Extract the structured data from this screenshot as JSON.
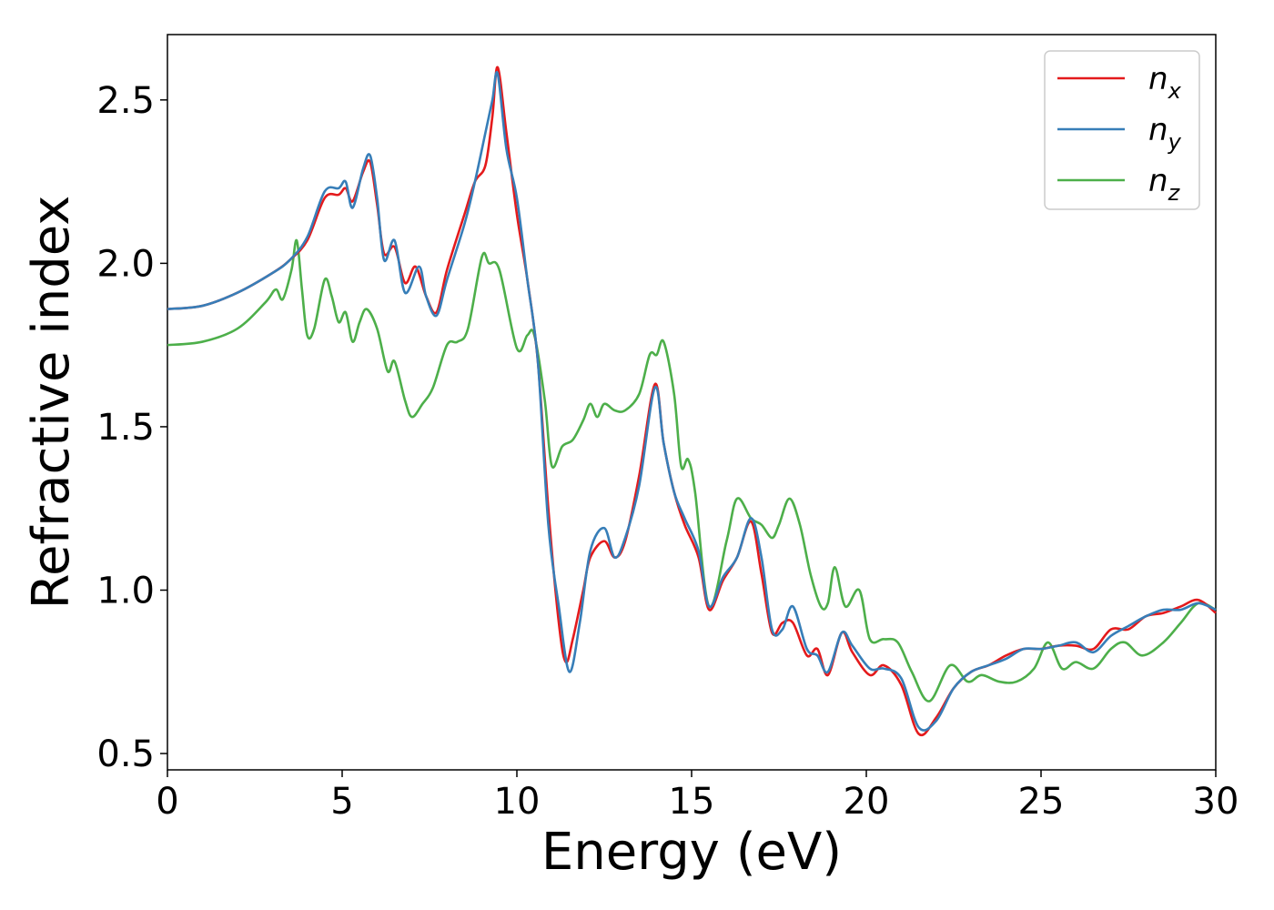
{
  "chart_data": {
    "type": "line",
    "xlabel": "Energy (eV)",
    "ylabel": "Refractive index",
    "xlim": [
      0,
      30
    ],
    "ylim": [
      0.45,
      2.7
    ],
    "xticks": [
      0,
      5,
      10,
      15,
      20,
      25,
      30
    ],
    "xtick_labels": [
      "0",
      "5",
      "10",
      "15",
      "20",
      "25",
      "30"
    ],
    "yticks": [
      0.5,
      1.0,
      1.5,
      2.0,
      2.5
    ],
    "ytick_labels": [
      "0.5",
      "1.0",
      "1.5",
      "2.0",
      "2.5"
    ],
    "grid": false,
    "legend_position": "top-right",
    "series": [
      {
        "name": "n",
        "subscript": "x",
        "color": "#e41a1c",
        "points": [
          [
            0,
            1.86
          ],
          [
            1,
            1.87
          ],
          [
            2,
            1.91
          ],
          [
            3,
            1.97
          ],
          [
            3.5,
            2.01
          ],
          [
            4,
            2.07
          ],
          [
            4.5,
            2.2
          ],
          [
            4.9,
            2.21
          ],
          [
            5.1,
            2.23
          ],
          [
            5.3,
            2.19
          ],
          [
            5.6,
            2.28
          ],
          [
            5.8,
            2.31
          ],
          [
            6.0,
            2.18
          ],
          [
            6.2,
            2.03
          ],
          [
            6.5,
            2.05
          ],
          [
            6.8,
            1.94
          ],
          [
            7.1,
            1.99
          ],
          [
            7.4,
            1.9
          ],
          [
            7.7,
            1.85
          ],
          [
            8.0,
            1.98
          ],
          [
            8.5,
            2.15
          ],
          [
            8.8,
            2.25
          ],
          [
            9.1,
            2.3
          ],
          [
            9.3,
            2.45
          ],
          [
            9.45,
            2.6
          ],
          [
            9.7,
            2.4
          ],
          [
            10.0,
            2.15
          ],
          [
            10.3,
            1.95
          ],
          [
            10.6,
            1.7
          ],
          [
            10.9,
            1.25
          ],
          [
            11.2,
            0.9
          ],
          [
            11.4,
            0.78
          ],
          [
            11.6,
            0.85
          ],
          [
            11.9,
            1.0
          ],
          [
            12.1,
            1.1
          ],
          [
            12.5,
            1.15
          ],
          [
            12.8,
            1.1
          ],
          [
            13.1,
            1.15
          ],
          [
            13.5,
            1.35
          ],
          [
            13.95,
            1.63
          ],
          [
            14.2,
            1.45
          ],
          [
            14.5,
            1.3
          ],
          [
            14.8,
            1.2
          ],
          [
            15.2,
            1.1
          ],
          [
            15.5,
            0.94
          ],
          [
            15.9,
            1.03
          ],
          [
            16.3,
            1.1
          ],
          [
            16.7,
            1.21
          ],
          [
            17.0,
            1.05
          ],
          [
            17.3,
            0.87
          ],
          [
            17.6,
            0.9
          ],
          [
            17.9,
            0.9
          ],
          [
            18.3,
            0.8
          ],
          [
            18.6,
            0.82
          ],
          [
            18.9,
            0.74
          ],
          [
            19.3,
            0.87
          ],
          [
            19.6,
            0.81
          ],
          [
            20.1,
            0.74
          ],
          [
            20.5,
            0.77
          ],
          [
            21.0,
            0.71
          ],
          [
            21.5,
            0.56
          ],
          [
            22.0,
            0.61
          ],
          [
            22.5,
            0.7
          ],
          [
            23.0,
            0.75
          ],
          [
            23.5,
            0.77
          ],
          [
            24.0,
            0.8
          ],
          [
            24.5,
            0.82
          ],
          [
            25.0,
            0.82
          ],
          [
            25.5,
            0.83
          ],
          [
            26.0,
            0.83
          ],
          [
            26.5,
            0.82
          ],
          [
            27.0,
            0.88
          ],
          [
            27.5,
            0.88
          ],
          [
            28.0,
            0.92
          ],
          [
            28.5,
            0.93
          ],
          [
            29.0,
            0.95
          ],
          [
            29.5,
            0.97
          ],
          [
            30.0,
            0.93
          ]
        ]
      },
      {
        "name": "n",
        "subscript": "y",
        "color": "#377eb8",
        "points": [
          [
            0,
            1.86
          ],
          [
            1,
            1.87
          ],
          [
            2,
            1.91
          ],
          [
            3,
            1.97
          ],
          [
            3.5,
            2.01
          ],
          [
            4,
            2.08
          ],
          [
            4.5,
            2.22
          ],
          [
            4.9,
            2.23
          ],
          [
            5.1,
            2.25
          ],
          [
            5.3,
            2.17
          ],
          [
            5.6,
            2.29
          ],
          [
            5.8,
            2.33
          ],
          [
            6.0,
            2.2
          ],
          [
            6.2,
            2.01
          ],
          [
            6.5,
            2.07
          ],
          [
            6.8,
            1.91
          ],
          [
            7.2,
            1.99
          ],
          [
            7.4,
            1.9
          ],
          [
            7.7,
            1.84
          ],
          [
            8.0,
            1.95
          ],
          [
            8.5,
            2.12
          ],
          [
            8.8,
            2.25
          ],
          [
            9.1,
            2.4
          ],
          [
            9.3,
            2.5
          ],
          [
            9.45,
            2.58
          ],
          [
            9.7,
            2.35
          ],
          [
            10.0,
            2.2
          ],
          [
            10.3,
            1.95
          ],
          [
            10.6,
            1.7
          ],
          [
            10.9,
            1.2
          ],
          [
            11.2,
            0.95
          ],
          [
            11.5,
            0.75
          ],
          [
            11.8,
            0.9
          ],
          [
            12.1,
            1.12
          ],
          [
            12.5,
            1.19
          ],
          [
            12.8,
            1.1
          ],
          [
            13.1,
            1.16
          ],
          [
            13.5,
            1.32
          ],
          [
            13.95,
            1.62
          ],
          [
            14.2,
            1.45
          ],
          [
            14.5,
            1.3
          ],
          [
            14.8,
            1.22
          ],
          [
            15.2,
            1.12
          ],
          [
            15.5,
            0.95
          ],
          [
            15.9,
            1.04
          ],
          [
            16.3,
            1.1
          ],
          [
            16.7,
            1.22
          ],
          [
            17.0,
            1.1
          ],
          [
            17.3,
            0.88
          ],
          [
            17.6,
            0.88
          ],
          [
            17.9,
            0.95
          ],
          [
            18.3,
            0.82
          ],
          [
            18.6,
            0.8
          ],
          [
            18.9,
            0.75
          ],
          [
            19.3,
            0.87
          ],
          [
            19.6,
            0.83
          ],
          [
            20.1,
            0.76
          ],
          [
            20.5,
            0.76
          ],
          [
            21.0,
            0.73
          ],
          [
            21.5,
            0.58
          ],
          [
            22.0,
            0.6
          ],
          [
            22.5,
            0.7
          ],
          [
            23.0,
            0.75
          ],
          [
            23.5,
            0.77
          ],
          [
            24.0,
            0.79
          ],
          [
            24.5,
            0.82
          ],
          [
            25.0,
            0.82
          ],
          [
            25.5,
            0.83
          ],
          [
            26.0,
            0.84
          ],
          [
            26.5,
            0.81
          ],
          [
            27.0,
            0.86
          ],
          [
            27.5,
            0.89
          ],
          [
            28.0,
            0.92
          ],
          [
            28.5,
            0.94
          ],
          [
            29.0,
            0.94
          ],
          [
            29.5,
            0.96
          ],
          [
            30.0,
            0.94
          ]
        ]
      },
      {
        "name": "n",
        "subscript": "z",
        "color": "#4daf4a",
        "points": [
          [
            0,
            1.75
          ],
          [
            1,
            1.76
          ],
          [
            2,
            1.8
          ],
          [
            2.8,
            1.88
          ],
          [
            3.1,
            1.92
          ],
          [
            3.3,
            1.89
          ],
          [
            3.55,
            1.98
          ],
          [
            3.7,
            2.07
          ],
          [
            3.85,
            1.92
          ],
          [
            4.0,
            1.78
          ],
          [
            4.2,
            1.8
          ],
          [
            4.5,
            1.95
          ],
          [
            4.7,
            1.9
          ],
          [
            4.9,
            1.82
          ],
          [
            5.1,
            1.85
          ],
          [
            5.3,
            1.76
          ],
          [
            5.5,
            1.82
          ],
          [
            5.7,
            1.86
          ],
          [
            6.0,
            1.8
          ],
          [
            6.3,
            1.67
          ],
          [
            6.5,
            1.7
          ],
          [
            6.8,
            1.58
          ],
          [
            7.0,
            1.53
          ],
          [
            7.3,
            1.57
          ],
          [
            7.6,
            1.62
          ],
          [
            8.0,
            1.75
          ],
          [
            8.3,
            1.76
          ],
          [
            8.6,
            1.8
          ],
          [
            9.0,
            2.02
          ],
          [
            9.2,
            2.0
          ],
          [
            9.5,
            1.98
          ],
          [
            10.0,
            1.74
          ],
          [
            10.3,
            1.78
          ],
          [
            10.5,
            1.78
          ],
          [
            10.8,
            1.58
          ],
          [
            11.0,
            1.38
          ],
          [
            11.3,
            1.44
          ],
          [
            11.6,
            1.46
          ],
          [
            11.9,
            1.52
          ],
          [
            12.1,
            1.57
          ],
          [
            12.3,
            1.53
          ],
          [
            12.5,
            1.57
          ],
          [
            12.8,
            1.55
          ],
          [
            13.1,
            1.55
          ],
          [
            13.5,
            1.6
          ],
          [
            13.8,
            1.72
          ],
          [
            14.0,
            1.72
          ],
          [
            14.2,
            1.76
          ],
          [
            14.5,
            1.6
          ],
          [
            14.7,
            1.38
          ],
          [
            14.9,
            1.4
          ],
          [
            15.1,
            1.3
          ],
          [
            15.5,
            0.95
          ],
          [
            16.0,
            1.15
          ],
          [
            16.3,
            1.28
          ],
          [
            16.7,
            1.22
          ],
          [
            17.0,
            1.2
          ],
          [
            17.3,
            1.16
          ],
          [
            17.5,
            1.2
          ],
          [
            17.8,
            1.28
          ],
          [
            18.1,
            1.2
          ],
          [
            18.4,
            1.05
          ],
          [
            18.7,
            0.95
          ],
          [
            18.9,
            0.96
          ],
          [
            19.1,
            1.07
          ],
          [
            19.4,
            0.95
          ],
          [
            19.8,
            1.0
          ],
          [
            20.1,
            0.85
          ],
          [
            20.5,
            0.85
          ],
          [
            20.9,
            0.84
          ],
          [
            21.3,
            0.75
          ],
          [
            21.8,
            0.66
          ],
          [
            22.4,
            0.77
          ],
          [
            22.9,
            0.72
          ],
          [
            23.3,
            0.74
          ],
          [
            23.8,
            0.72
          ],
          [
            24.3,
            0.72
          ],
          [
            24.8,
            0.76
          ],
          [
            25.2,
            0.84
          ],
          [
            25.6,
            0.76
          ],
          [
            26.0,
            0.78
          ],
          [
            26.5,
            0.76
          ],
          [
            27.0,
            0.82
          ],
          [
            27.4,
            0.84
          ],
          [
            27.9,
            0.8
          ],
          [
            28.5,
            0.84
          ],
          [
            29.0,
            0.9
          ],
          [
            29.5,
            0.96
          ],
          [
            30.0,
            0.94
          ]
        ]
      }
    ]
  }
}
